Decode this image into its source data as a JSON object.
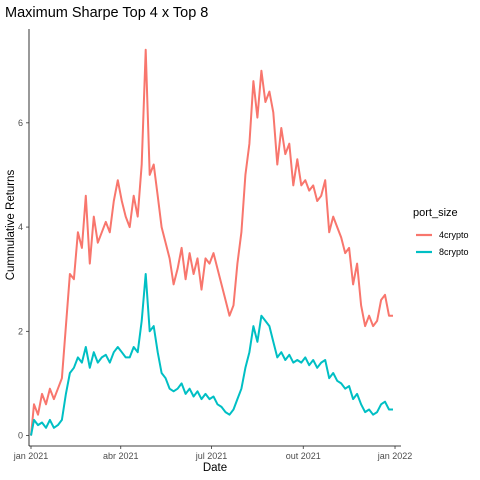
{
  "chart_data": {
    "type": "line",
    "title": "Maximum Sharpe Top 4 x Top 8",
    "xlabel": "Date",
    "ylabel": "Cummulative Returns",
    "x_ticks": [
      "jan 2021",
      "abr 2021",
      "jul 2021",
      "out 2021",
      "jan 2022"
    ],
    "y_ticks": [
      "0",
      "2",
      "4",
      "6"
    ],
    "xlim": [
      "2020-12-30",
      "2022-01-07"
    ],
    "ylim": [
      -0.2,
      7.8
    ],
    "grid": false,
    "legend": {
      "title": "port_size",
      "position": "right"
    },
    "series": [
      {
        "name": "4crypto",
        "color": "#F8766D",
        "x": [
          "2021-01-01",
          "2021-01-04",
          "2021-01-08",
          "2021-01-12",
          "2021-01-16",
          "2021-01-20",
          "2021-01-24",
          "2021-01-28",
          "2021-02-01",
          "2021-02-05",
          "2021-02-09",
          "2021-02-13",
          "2021-02-17",
          "2021-02-21",
          "2021-02-25",
          "2021-03-01",
          "2021-03-05",
          "2021-03-09",
          "2021-03-13",
          "2021-03-17",
          "2021-03-21",
          "2021-03-25",
          "2021-03-29",
          "2021-04-02",
          "2021-04-06",
          "2021-04-10",
          "2021-04-14",
          "2021-04-18",
          "2021-04-22",
          "2021-04-26",
          "2021-04-30",
          "2021-05-04",
          "2021-05-08",
          "2021-05-12",
          "2021-05-16",
          "2021-05-20",
          "2021-05-24",
          "2021-05-28",
          "2021-06-01",
          "2021-06-05",
          "2021-06-09",
          "2021-06-13",
          "2021-06-17",
          "2021-06-21",
          "2021-06-25",
          "2021-06-29",
          "2021-07-03",
          "2021-07-07",
          "2021-07-11",
          "2021-07-15",
          "2021-07-19",
          "2021-07-23",
          "2021-07-27",
          "2021-07-31",
          "2021-08-04",
          "2021-08-08",
          "2021-08-12",
          "2021-08-16",
          "2021-08-20",
          "2021-08-24",
          "2021-08-28",
          "2021-09-01",
          "2021-09-05",
          "2021-09-09",
          "2021-09-13",
          "2021-09-17",
          "2021-09-21",
          "2021-09-25",
          "2021-09-29",
          "2021-10-03",
          "2021-10-07",
          "2021-10-11",
          "2021-10-15",
          "2021-10-19",
          "2021-10-23",
          "2021-10-27",
          "2021-10-31",
          "2021-11-04",
          "2021-11-08",
          "2021-11-12",
          "2021-11-16",
          "2021-11-20",
          "2021-11-24",
          "2021-11-28",
          "2021-12-02",
          "2021-12-06",
          "2021-12-10",
          "2021-12-14",
          "2021-12-18",
          "2021-12-22",
          "2021-12-26",
          "2021-12-30"
        ],
        "y": [
          0.0,
          0.6,
          0.4,
          0.8,
          0.6,
          0.9,
          0.7,
          0.9,
          1.1,
          2.1,
          3.1,
          3.0,
          3.9,
          3.6,
          4.6,
          3.3,
          4.2,
          3.7,
          3.9,
          4.1,
          3.9,
          4.5,
          4.9,
          4.5,
          4.2,
          4.0,
          4.6,
          4.2,
          5.2,
          7.4,
          5.0,
          5.2,
          4.6,
          4.0,
          3.7,
          3.4,
          2.9,
          3.2,
          3.6,
          3.0,
          3.5,
          3.1,
          3.4,
          2.8,
          3.4,
          3.3,
          3.5,
          3.2,
          2.9,
          2.6,
          2.3,
          2.5,
          3.3,
          3.9,
          5.0,
          5.6,
          6.8,
          6.1,
          7.0,
          6.4,
          6.6,
          6.2,
          5.2,
          5.9,
          5.4,
          5.6,
          4.8,
          5.3,
          4.8,
          4.9,
          4.7,
          4.8,
          4.5,
          4.6,
          4.9,
          3.9,
          4.2,
          4.0,
          3.8,
          3.5,
          3.6,
          2.9,
          3.3,
          2.5,
          2.1,
          2.3,
          2.1,
          2.2,
          2.6,
          2.7,
          2.3,
          2.3
        ]
      },
      {
        "name": "8crypto",
        "color": "#00BFC4",
        "x": [
          "2021-01-01",
          "2021-01-04",
          "2021-01-08",
          "2021-01-12",
          "2021-01-16",
          "2021-01-20",
          "2021-01-24",
          "2021-01-28",
          "2021-02-01",
          "2021-02-05",
          "2021-02-09",
          "2021-02-13",
          "2021-02-17",
          "2021-02-21",
          "2021-02-25",
          "2021-03-01",
          "2021-03-05",
          "2021-03-09",
          "2021-03-13",
          "2021-03-17",
          "2021-03-21",
          "2021-03-25",
          "2021-03-29",
          "2021-04-02",
          "2021-04-06",
          "2021-04-10",
          "2021-04-14",
          "2021-04-18",
          "2021-04-22",
          "2021-04-26",
          "2021-04-30",
          "2021-05-04",
          "2021-05-08",
          "2021-05-12",
          "2021-05-16",
          "2021-05-20",
          "2021-05-24",
          "2021-05-28",
          "2021-06-01",
          "2021-06-05",
          "2021-06-09",
          "2021-06-13",
          "2021-06-17",
          "2021-06-21",
          "2021-06-25",
          "2021-06-29",
          "2021-07-03",
          "2021-07-07",
          "2021-07-11",
          "2021-07-15",
          "2021-07-19",
          "2021-07-23",
          "2021-07-27",
          "2021-07-31",
          "2021-08-04",
          "2021-08-08",
          "2021-08-12",
          "2021-08-16",
          "2021-08-20",
          "2021-08-24",
          "2021-08-28",
          "2021-09-01",
          "2021-09-05",
          "2021-09-09",
          "2021-09-13",
          "2021-09-17",
          "2021-09-21",
          "2021-09-25",
          "2021-09-29",
          "2021-10-03",
          "2021-10-07",
          "2021-10-11",
          "2021-10-15",
          "2021-10-19",
          "2021-10-23",
          "2021-10-27",
          "2021-10-31",
          "2021-11-04",
          "2021-11-08",
          "2021-11-12",
          "2021-11-16",
          "2021-11-20",
          "2021-11-24",
          "2021-11-28",
          "2021-12-02",
          "2021-12-06",
          "2021-12-10",
          "2021-12-14",
          "2021-12-18",
          "2021-12-22",
          "2021-12-26",
          "2021-12-30"
        ],
        "y": [
          0.0,
          0.3,
          0.2,
          0.25,
          0.15,
          0.3,
          0.15,
          0.2,
          0.3,
          0.8,
          1.2,
          1.3,
          1.5,
          1.4,
          1.7,
          1.3,
          1.6,
          1.4,
          1.5,
          1.55,
          1.4,
          1.6,
          1.7,
          1.6,
          1.5,
          1.5,
          1.7,
          1.6,
          2.2,
          3.1,
          2.0,
          2.1,
          1.6,
          1.2,
          1.1,
          0.9,
          0.85,
          0.9,
          1.0,
          0.8,
          0.9,
          0.75,
          0.85,
          0.7,
          0.8,
          0.7,
          0.75,
          0.6,
          0.55,
          0.45,
          0.4,
          0.5,
          0.7,
          0.9,
          1.3,
          1.6,
          2.1,
          1.8,
          2.3,
          2.2,
          2.1,
          1.8,
          1.5,
          1.6,
          1.45,
          1.55,
          1.4,
          1.45,
          1.4,
          1.5,
          1.35,
          1.45,
          1.3,
          1.4,
          1.45,
          1.1,
          1.2,
          1.05,
          1.0,
          0.9,
          0.95,
          0.7,
          0.8,
          0.6,
          0.45,
          0.5,
          0.4,
          0.45,
          0.6,
          0.65,
          0.5,
          0.5
        ]
      }
    ]
  }
}
